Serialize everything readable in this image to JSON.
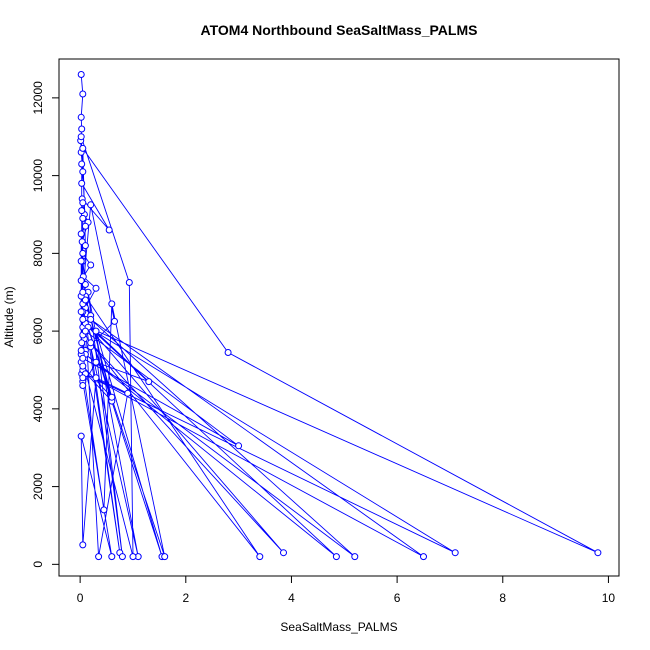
{
  "chart_data": {
    "type": "line",
    "title": "ATOM4 Northbound SeaSaltMass_PALMS",
    "xlabel": "SeaSaltMass_PALMS",
    "ylabel": "Altitude (m)",
    "xlim": [
      -0.4,
      10.2
    ],
    "ylim": [
      -300,
      13000
    ],
    "x_ticks": [
      0,
      2,
      4,
      6,
      8,
      10
    ],
    "y_ticks": [
      0,
      2000,
      4000,
      6000,
      8000,
      10000,
      12000
    ],
    "grid": false,
    "legend": "none",
    "line_color": "#0000ff",
    "markers": "open-circle",
    "series": [
      {
        "points": [
          [
            0.02,
            12600
          ],
          [
            0.05,
            12100
          ],
          [
            0.02,
            11500
          ],
          [
            0.03,
            11200
          ],
          [
            0.01,
            10900
          ],
          [
            0.02,
            10600
          ],
          [
            0.05,
            10100
          ],
          [
            0.03,
            9800
          ],
          [
            0.55,
            8600
          ],
          [
            0.04,
            9400
          ],
          [
            0.08,
            9000
          ],
          [
            0.15,
            8800
          ],
          [
            0.04,
            8300
          ],
          [
            0.05,
            8000
          ],
          [
            0.2,
            7700
          ],
          [
            0.06,
            7400
          ],
          [
            0.3,
            7100
          ],
          [
            0.1,
            6600
          ],
          [
            0.2,
            6400
          ],
          [
            0.05,
            6100
          ],
          [
            0.08,
            5800
          ],
          [
            0.1,
            5500
          ],
          [
            0.02,
            5200
          ],
          [
            0.03,
            4900
          ],
          [
            0.05,
            4700
          ],
          [
            0.6,
            200
          ],
          [
            0.02,
            3300
          ],
          [
            0.05,
            500
          ],
          [
            0.3,
            4800
          ],
          [
            0.9,
            4400
          ],
          [
            0.35,
            200
          ],
          [
            0.1,
            6300
          ],
          [
            0.75,
            300
          ],
          [
            0.2,
            5600
          ],
          [
            1.1,
            200
          ],
          [
            0.15,
            7000
          ],
          [
            0.8,
            200
          ],
          [
            0.3,
            6000
          ],
          [
            1.55,
            200
          ],
          [
            0.05,
            6500
          ],
          [
            1.6,
            200
          ],
          [
            0.6,
            6700
          ],
          [
            0.45,
            1400
          ],
          [
            0.05,
            5000
          ],
          [
            0.6,
            4200
          ],
          [
            0.1,
            6900
          ],
          [
            3.4,
            200
          ],
          [
            0.2,
            5700
          ],
          [
            3.85,
            300
          ],
          [
            0.1,
            6200
          ],
          [
            4.85,
            200
          ],
          [
            0.1,
            5400
          ],
          [
            5.2,
            200
          ],
          [
            0.2,
            6300
          ],
          [
            6.5,
            200
          ],
          [
            0.1,
            4900
          ],
          [
            7.1,
            300
          ],
          [
            0.15,
            6100
          ],
          [
            9.8,
            300
          ],
          [
            2.8,
            5450
          ],
          [
            0.05,
            10700
          ],
          [
            0.1,
            8200
          ],
          [
            0.05,
            4600
          ],
          [
            0.3,
            5200
          ],
          [
            1.3,
            4700
          ],
          [
            0.05,
            6300
          ],
          [
            0.05,
            5900
          ],
          [
            0.1,
            7200
          ],
          [
            0.05,
            7800
          ],
          [
            0.05,
            9300
          ],
          [
            0.05,
            8900
          ],
          [
            0.05,
            6700
          ],
          [
            0.1,
            6800
          ],
          [
            0.6,
            4300
          ],
          [
            0.05,
            5100
          ],
          [
            0.05,
            4800
          ],
          [
            0.03,
            9100
          ],
          [
            0.03,
            10300
          ],
          [
            0.03,
            5700
          ],
          [
            0.02,
            6900
          ],
          [
            0.02,
            7300
          ],
          [
            0.02,
            8500
          ],
          [
            0.1,
            8700
          ],
          [
            0.02,
            11000
          ],
          [
            0.93,
            7250
          ],
          [
            1.0,
            200
          ],
          [
            0.02,
            5400
          ],
          [
            0.65,
            6250
          ],
          [
            0.2,
            9250
          ],
          [
            0.05,
            7000
          ],
          [
            0.05,
            5300
          ],
          [
            3.0,
            3050
          ],
          [
            0.1,
            6000
          ],
          [
            0.02,
            7800
          ],
          [
            0.02,
            5500
          ],
          [
            0.02,
            6500
          ]
        ]
      }
    ]
  }
}
